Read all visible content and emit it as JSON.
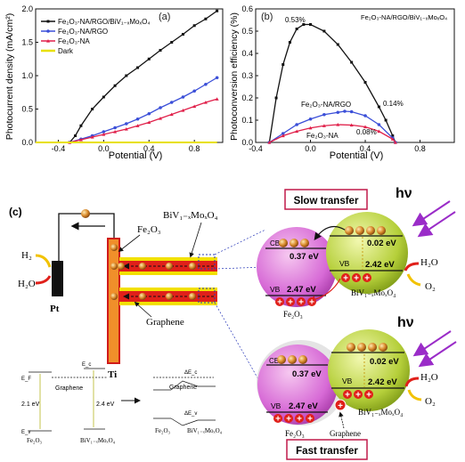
{
  "chart_data": [
    {
      "type": "line",
      "panel_label": "(a)",
      "xlabel": "Potential (V)",
      "ylabel": "Photocurrent density (mA/cm²)",
      "xlim": [
        -0.6,
        1.05
      ],
      "ylim": [
        0.0,
        2.0
      ],
      "x_ticks": [
        "-0.4",
        "0.0",
        "0.4",
        "0.8"
      ],
      "y_ticks": [
        "0.0",
        "0.5",
        "1.0",
        "1.5",
        "2.0"
      ],
      "legend_position": "top-left",
      "series": [
        {
          "name": "Fe₂O₃-NA/RGO/BiV₁₋ₓMoₓO₄",
          "color": "#111111",
          "marker": "square",
          "x": [
            -0.3,
            -0.25,
            -0.2,
            -0.1,
            0.0,
            0.1,
            0.2,
            0.3,
            0.4,
            0.5,
            0.6,
            0.7,
            0.8,
            0.9,
            1.0
          ],
          "y": [
            0.0,
            0.1,
            0.25,
            0.5,
            0.68,
            0.85,
            1.0,
            1.12,
            1.25,
            1.38,
            1.5,
            1.62,
            1.75,
            1.85,
            1.97
          ]
        },
        {
          "name": "Fe₂O₃-NA/RGO",
          "color": "#3b4fd8",
          "marker": "circle",
          "x": [
            -0.3,
            -0.2,
            -0.1,
            0.0,
            0.1,
            0.2,
            0.3,
            0.4,
            0.5,
            0.6,
            0.7,
            0.8,
            0.9,
            1.0
          ],
          "y": [
            0.0,
            0.05,
            0.1,
            0.16,
            0.22,
            0.28,
            0.35,
            0.43,
            0.52,
            0.6,
            0.68,
            0.77,
            0.87,
            0.97
          ]
        },
        {
          "name": "Fe₂O₃-NA",
          "color": "#e0204a",
          "marker": "triangle",
          "x": [
            -0.3,
            -0.2,
            -0.1,
            0.0,
            0.1,
            0.2,
            0.3,
            0.4,
            0.5,
            0.6,
            0.7,
            0.8,
            0.9,
            1.0
          ],
          "y": [
            0.0,
            0.04,
            0.08,
            0.12,
            0.16,
            0.2,
            0.25,
            0.3,
            0.36,
            0.42,
            0.48,
            0.54,
            0.6,
            0.65
          ]
        },
        {
          "name": "Dark",
          "color": "#e8e000",
          "marker": "none",
          "x": [
            -0.6,
            1.0
          ],
          "y": [
            0.0,
            0.0
          ]
        }
      ]
    },
    {
      "type": "line",
      "panel_label": "(b)",
      "xlabel": "Potential (V)",
      "ylabel": "Photoconversion efficiency (%)",
      "xlim": [
        -0.4,
        1.05
      ],
      "ylim": [
        0.0,
        0.6
      ],
      "x_ticks": [
        "-0.4",
        "0.0",
        "0.4",
        "0.8"
      ],
      "y_ticks": [
        "0.0",
        "0.1",
        "0.2",
        "0.3",
        "0.4",
        "0.5",
        "0.6"
      ],
      "series": [
        {
          "name": "Fe₂O₃-NA/RGO/BiV₁₋ₓMoₓO₄",
          "color": "#111111",
          "marker": "square",
          "x": [
            -0.3,
            -0.25,
            -0.2,
            -0.15,
            -0.1,
            -0.05,
            0.0,
            0.1,
            0.2,
            0.3,
            0.4,
            0.5,
            0.55,
            0.6,
            0.62
          ],
          "y": [
            0.0,
            0.2,
            0.35,
            0.45,
            0.51,
            0.53,
            0.53,
            0.5,
            0.44,
            0.36,
            0.27,
            0.16,
            0.1,
            0.03,
            0.0
          ]
        },
        {
          "name": "Fe₂O₃-NA/RGO",
          "color": "#3b4fd8",
          "marker": "circle",
          "x": [
            -0.3,
            -0.2,
            -0.1,
            0.0,
            0.1,
            0.2,
            0.25,
            0.3,
            0.4,
            0.5,
            0.6,
            0.62
          ],
          "y": [
            0.0,
            0.04,
            0.08,
            0.105,
            0.125,
            0.135,
            0.14,
            0.138,
            0.12,
            0.08,
            0.02,
            0.0
          ]
        },
        {
          "name": "Fe₂O₃-NA",
          "color": "#e0204a",
          "marker": "triangle",
          "x": [
            -0.3,
            -0.2,
            -0.1,
            0.0,
            0.1,
            0.2,
            0.3,
            0.4,
            0.5,
            0.6,
            0.62
          ],
          "y": [
            0.0,
            0.03,
            0.05,
            0.065,
            0.075,
            0.08,
            0.078,
            0.07,
            0.05,
            0.015,
            0.0
          ]
        }
      ],
      "annotations": [
        "0.53%",
        "0.14%",
        "0.08%",
        "Fe₂O₃-NA/RGO/BiV₁₋ₓMoₓO₄",
        "Fe₂O₃-NA/RGO",
        "Fe₂O₃-NA"
      ]
    }
  ],
  "schematic": {
    "panel_label": "(c)",
    "h2": "H₂",
    "h2o_left": "H₂O",
    "pt": "Pt",
    "ti": "Ti",
    "fe2o3": "Fe₂O₃",
    "bivo4": "BiV₁₋ₓMoₓO₄",
    "graphene": "Graphene",
    "hv": "hν",
    "slow": "Slow transfer",
    "fast": "Fast transfer",
    "top": {
      "cb": "CB",
      "vb": "VB",
      "fe_cb": "0.37 eV",
      "fe_vb": "2.47 eV",
      "bi_cb": "0.02 eV",
      "bi_vb": "2.42 eV",
      "fe_label": "Fe₂O₃",
      "bi_label": "BiV₁₋ₓMoₓO₄",
      "h2o": "H₂O",
      "o2": "O₂"
    },
    "bottom": {
      "cb": "CB",
      "vb": "VB",
      "fe_cb": "0.37 eV",
      "fe_vb": "2.47 eV",
      "bi_cb": "0.02 eV",
      "bi_vb": "2.42 eV",
      "fe_label": "Fe₂O₃",
      "bi_label": "BiV₁₋ₓMoₓO₄",
      "graphene": "Graphene",
      "h2o": "H₂O",
      "o2": "O₂"
    },
    "band": {
      "ef1": "E_F",
      "ec1": "E_c",
      "ev1": "E_v",
      "gap1": "2.1 eV",
      "gap2": "2.4 eV",
      "graphene": "Graphene",
      "fe_label": "Fe₂O₃",
      "bi_label": "BiV₁₋ₓMoₓO₄",
      "delta_c": "ΔE_c",
      "delta_v": "ΔE_v"
    }
  }
}
